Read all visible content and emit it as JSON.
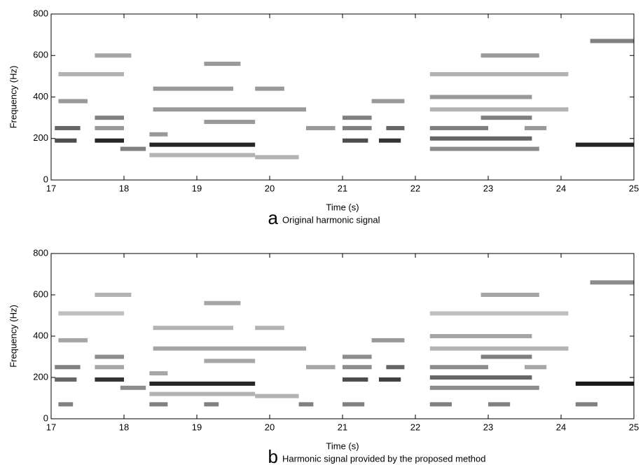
{
  "chart_data": [
    {
      "type": "spectrogram",
      "x_label": "Time (s)",
      "y_label": "Frequency (Hz)",
      "caption_letter": "a",
      "caption": "Original harmonic signal",
      "xlim": [
        17,
        25
      ],
      "xticks": [
        17,
        18,
        19,
        20,
        21,
        22,
        23,
        24,
        25
      ],
      "ylim": [
        0,
        800
      ],
      "yticks": [
        0,
        200,
        400,
        600,
        800
      ],
      "segments": [
        [
          17.05,
          17.35,
          190,
          0.7
        ],
        [
          17.6,
          18.0,
          190,
          0.85
        ],
        [
          18.35,
          19.8,
          170,
          0.85
        ],
        [
          21.0,
          21.35,
          190,
          0.7
        ],
        [
          21.5,
          21.8,
          190,
          0.8
        ],
        [
          22.2,
          23.6,
          200,
          0.6
        ],
        [
          24.2,
          25,
          170,
          0.85
        ],
        [
          17.05,
          17.4,
          250,
          0.6
        ],
        [
          17.6,
          18.0,
          250,
          0.4
        ],
        [
          18.35,
          18.6,
          220,
          0.4
        ],
        [
          21.0,
          21.4,
          250,
          0.5
        ],
        [
          21.6,
          21.85,
          250,
          0.6
        ],
        [
          22.2,
          23.0,
          250,
          0.5
        ],
        [
          23.5,
          23.8,
          250,
          0.4
        ],
        [
          17.6,
          18.0,
          300,
          0.5
        ],
        [
          21.0,
          21.4,
          300,
          0.5
        ],
        [
          22.9,
          23.6,
          300,
          0.5
        ],
        [
          17.95,
          18.3,
          150,
          0.5
        ],
        [
          22.2,
          23.7,
          150,
          0.45
        ],
        [
          18.4,
          20.5,
          340,
          0.4
        ],
        [
          22.2,
          24.1,
          340,
          0.3
        ],
        [
          19.1,
          19.8,
          280,
          0.4
        ],
        [
          20.5,
          20.9,
          250,
          0.4
        ],
        [
          17.1,
          17.5,
          380,
          0.4
        ],
        [
          21.4,
          21.85,
          380,
          0.4
        ],
        [
          22.2,
          23.6,
          400,
          0.4
        ],
        [
          18.4,
          19.5,
          440,
          0.4
        ],
        [
          19.8,
          20.2,
          440,
          0.4
        ],
        [
          17.1,
          18.0,
          510,
          0.3
        ],
        [
          22.2,
          24.1,
          510,
          0.3
        ],
        [
          19.1,
          19.6,
          560,
          0.4
        ],
        [
          17.6,
          18.1,
          600,
          0.35
        ],
        [
          22.9,
          23.7,
          600,
          0.4
        ],
        [
          24.4,
          25,
          670,
          0.5
        ],
        [
          18.35,
          19.8,
          120,
          0.3
        ],
        [
          19.8,
          20.4,
          110,
          0.3
        ]
      ]
    },
    {
      "type": "spectrogram",
      "x_label": "Time (s)",
      "y_label": "Frequency (Hz)",
      "caption_letter": "b",
      "caption": "Harmonic signal provided by the proposed method",
      "xlim": [
        17,
        25
      ],
      "xticks": [
        17,
        18,
        19,
        20,
        21,
        22,
        23,
        24,
        25
      ],
      "ylim": [
        0,
        800
      ],
      "yticks": [
        0,
        200,
        400,
        600,
        800
      ],
      "segments": [
        [
          17.05,
          17.35,
          190,
          0.6
        ],
        [
          17.6,
          18.0,
          190,
          0.8
        ],
        [
          18.35,
          19.8,
          170,
          0.85
        ],
        [
          21.0,
          21.35,
          190,
          0.7
        ],
        [
          21.5,
          21.8,
          190,
          0.75
        ],
        [
          22.2,
          23.6,
          200,
          0.6
        ],
        [
          24.2,
          25,
          170,
          0.9
        ],
        [
          17.05,
          17.4,
          250,
          0.5
        ],
        [
          17.6,
          18.0,
          250,
          0.35
        ],
        [
          18.35,
          18.6,
          220,
          0.35
        ],
        [
          21.0,
          21.4,
          250,
          0.45
        ],
        [
          21.6,
          21.85,
          250,
          0.6
        ],
        [
          22.2,
          23.0,
          250,
          0.45
        ],
        [
          23.5,
          23.8,
          250,
          0.35
        ],
        [
          17.6,
          18.0,
          300,
          0.45
        ],
        [
          21.0,
          21.4,
          300,
          0.45
        ],
        [
          22.9,
          23.6,
          300,
          0.5
        ],
        [
          17.95,
          18.3,
          150,
          0.45
        ],
        [
          22.2,
          23.7,
          150,
          0.45
        ],
        [
          18.4,
          20.5,
          340,
          0.35
        ],
        [
          22.2,
          24.1,
          340,
          0.3
        ],
        [
          19.1,
          19.8,
          280,
          0.35
        ],
        [
          20.5,
          20.9,
          250,
          0.35
        ],
        [
          17.1,
          17.5,
          380,
          0.35
        ],
        [
          21.4,
          21.85,
          380,
          0.4
        ],
        [
          22.2,
          23.6,
          400,
          0.35
        ],
        [
          18.4,
          19.5,
          440,
          0.3
        ],
        [
          19.8,
          20.2,
          440,
          0.3
        ],
        [
          17.1,
          18.0,
          510,
          0.25
        ],
        [
          22.2,
          24.1,
          510,
          0.25
        ],
        [
          19.1,
          19.6,
          560,
          0.35
        ],
        [
          17.6,
          18.1,
          600,
          0.3
        ],
        [
          22.9,
          23.7,
          600,
          0.35
        ],
        [
          24.4,
          25,
          660,
          0.45
        ],
        [
          18.35,
          19.8,
          120,
          0.3
        ],
        [
          19.8,
          20.4,
          110,
          0.3
        ],
        [
          17.1,
          17.3,
          70,
          0.5
        ],
        [
          18.35,
          18.6,
          70,
          0.5
        ],
        [
          19.1,
          19.3,
          70,
          0.5
        ],
        [
          20.4,
          20.6,
          70,
          0.5
        ],
        [
          21.0,
          21.3,
          70,
          0.5
        ],
        [
          22.2,
          22.5,
          70,
          0.5
        ],
        [
          23.0,
          23.3,
          70,
          0.5
        ],
        [
          24.2,
          24.5,
          70,
          0.5
        ]
      ]
    }
  ]
}
